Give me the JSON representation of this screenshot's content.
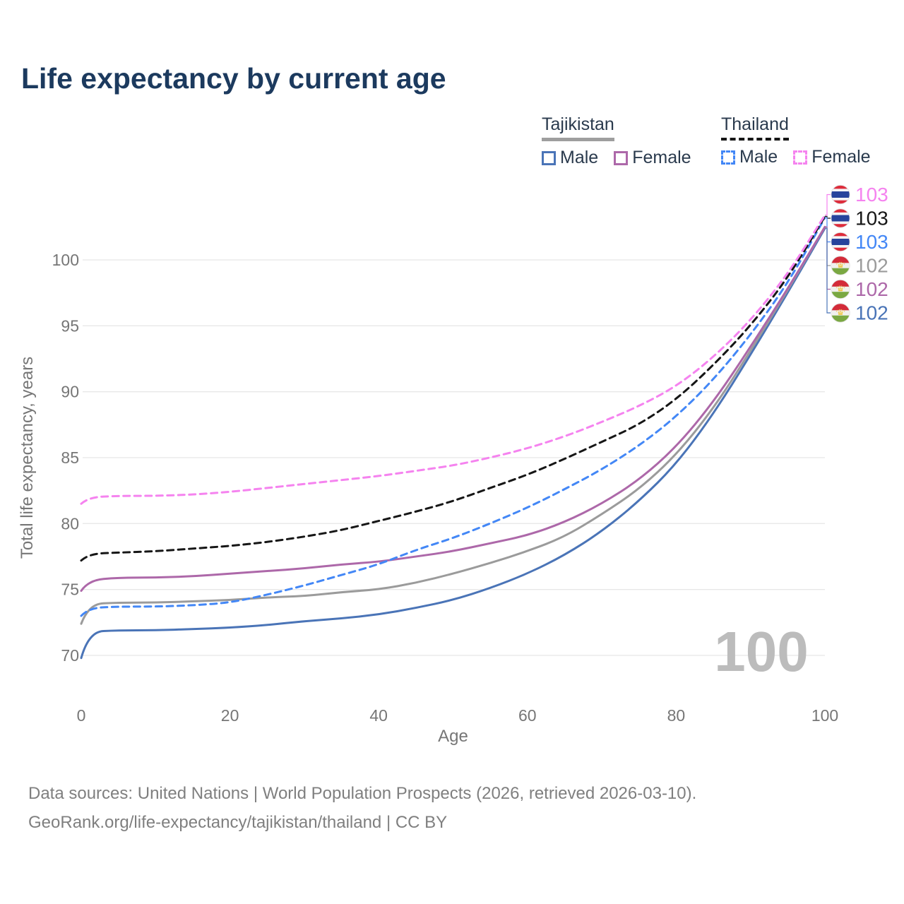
{
  "title": "Life expectancy by current age",
  "legend": {
    "groups": [
      {
        "country": "Tajikistan",
        "underline_style": "solid",
        "underline_color": "#9e9e9e",
        "items": [
          {
            "label": "Male",
            "color": "#4a74b7",
            "line_style": "solid"
          },
          {
            "label": "Female",
            "color": "#ad68a9",
            "line_style": "solid"
          }
        ]
      },
      {
        "country": "Thailand",
        "underline_style": "dashed",
        "underline_color": "#161616",
        "items": [
          {
            "label": "Male",
            "color": "#4387f6",
            "line_style": "dashed"
          },
          {
            "label": "Female",
            "color": "#f583ef",
            "line_style": "dashed"
          }
        ]
      }
    ]
  },
  "chart_data": {
    "type": "line",
    "title": "Life expectancy by current age",
    "xlabel": "Age",
    "ylabel": "Total life expectancy, years",
    "x_ticks": [
      0,
      20,
      40,
      60,
      80,
      100
    ],
    "y_ticks": [
      70,
      75,
      80,
      85,
      90,
      95,
      100
    ],
    "xlim": [
      0,
      100
    ],
    "ylim": [
      68.5,
      104.5
    ],
    "grid": "horizontal",
    "legend_position": "top-right",
    "watermark": "100",
    "ages": [
      0,
      1,
      5,
      10,
      15,
      20,
      25,
      30,
      35,
      40,
      45,
      50,
      55,
      60,
      65,
      70,
      75,
      80,
      85,
      90,
      95,
      100
    ],
    "series": [
      {
        "key": "thailand-female",
        "name": "Thailand Female",
        "flag": "thailand",
        "line_style": "dashed",
        "color": "#f583ef",
        "end_label": "103",
        "values": [
          81.5,
          82.0,
          82.1,
          82.1,
          82.2,
          82.4,
          82.7,
          83.0,
          83.3,
          83.6,
          84.0,
          84.4,
          85.0,
          85.7,
          86.6,
          87.7,
          88.9,
          90.4,
          92.6,
          95.4,
          98.9,
          103.4
        ]
      },
      {
        "key": "thailand-both",
        "name": "Thailand",
        "flag": "thailand",
        "line_style": "dashed",
        "color": "#161616",
        "end_label": "103",
        "values": [
          77.2,
          77.7,
          77.8,
          77.9,
          78.1,
          78.3,
          78.6,
          79.0,
          79.5,
          80.2,
          80.9,
          81.7,
          82.7,
          83.7,
          84.9,
          86.2,
          87.5,
          89.4,
          92.0,
          95.0,
          98.6,
          103.3
        ]
      },
      {
        "key": "thailand-male",
        "name": "Thailand Male",
        "flag": "thailand",
        "line_style": "dashed",
        "color": "#4387f6",
        "end_label": "103",
        "values": [
          73.0,
          73.6,
          73.7,
          73.7,
          73.8,
          74.0,
          74.6,
          75.3,
          76.1,
          76.9,
          78.0,
          78.9,
          80.0,
          81.2,
          82.6,
          84.1,
          85.9,
          88.1,
          90.9,
          94.3,
          98.2,
          103.2
        ]
      },
      {
        "key": "tajikistan-both",
        "name": "Tajikistan",
        "flag": "tajikistan",
        "line_style": "solid",
        "color": "#9b9b9b",
        "end_label": "102",
        "values": [
          72.4,
          73.9,
          74.0,
          74.0,
          74.1,
          74.2,
          74.4,
          74.5,
          74.8,
          75.0,
          75.5,
          76.2,
          77.0,
          77.9,
          79.0,
          80.7,
          82.6,
          85.2,
          88.7,
          93.1,
          97.7,
          102.5
        ]
      },
      {
        "key": "tajikistan-female",
        "name": "Tajikistan Female",
        "flag": "tajikistan",
        "line_style": "solid",
        "color": "#ad68a9",
        "end_label": "102",
        "values": [
          74.9,
          75.7,
          75.9,
          75.9,
          76.0,
          76.2,
          76.4,
          76.6,
          76.9,
          77.1,
          77.5,
          77.9,
          78.5,
          79.1,
          80.1,
          81.5,
          83.3,
          85.8,
          89.2,
          93.4,
          97.8,
          102.5
        ]
      },
      {
        "key": "tajikistan-male",
        "name": "Tajikistan Male",
        "flag": "tajikistan",
        "line_style": "solid",
        "color": "#4a74b7",
        "end_label": "102",
        "values": [
          69.8,
          71.8,
          71.9,
          71.9,
          72.0,
          72.1,
          72.3,
          72.6,
          72.8,
          73.1,
          73.6,
          74.2,
          75.1,
          76.2,
          77.6,
          79.4,
          81.7,
          84.5,
          88.3,
          92.8,
          97.5,
          102.4
        ]
      }
    ],
    "colors": {
      "gridline": "#e8e8e8",
      "axis_text": "#767676",
      "title_text": "#1c3a5e",
      "watermark": "#bcbcbc"
    }
  },
  "footer": {
    "line1": "Data sources: United Nations | World Population Prospects (2026, retrieved 2026-03-10).",
    "line2": "GeoRank.org/life-expectancy/tajikistan/thailand | CC BY"
  }
}
